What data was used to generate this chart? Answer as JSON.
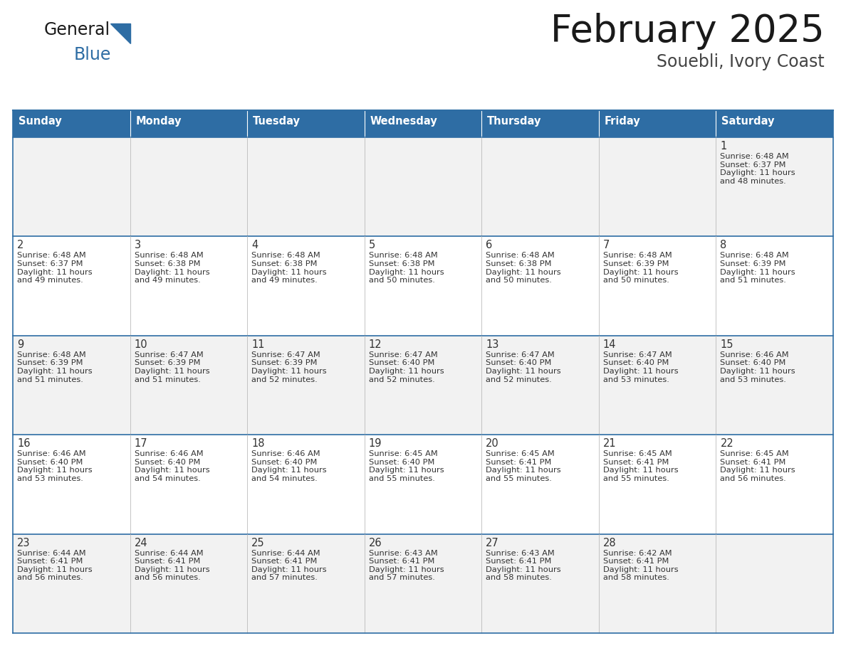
{
  "title": "February 2025",
  "subtitle": "Souebli, Ivory Coast",
  "header_color": "#2E6DA4",
  "header_text_color": "#FFFFFF",
  "cell_bg_white": "#FFFFFF",
  "cell_bg_gray": "#F2F2F2",
  "border_color": "#2E6DA4",
  "text_color": "#333333",
  "days_of_week": [
    "Sunday",
    "Monday",
    "Tuesday",
    "Wednesday",
    "Thursday",
    "Friday",
    "Saturday"
  ],
  "weeks": [
    [
      {
        "day": "",
        "info": ""
      },
      {
        "day": "",
        "info": ""
      },
      {
        "day": "",
        "info": ""
      },
      {
        "day": "",
        "info": ""
      },
      {
        "day": "",
        "info": ""
      },
      {
        "day": "",
        "info": ""
      },
      {
        "day": "1",
        "info": "Sunrise: 6:48 AM\nSunset: 6:37 PM\nDaylight: 11 hours\nand 48 minutes."
      }
    ],
    [
      {
        "day": "2",
        "info": "Sunrise: 6:48 AM\nSunset: 6:37 PM\nDaylight: 11 hours\nand 49 minutes."
      },
      {
        "day": "3",
        "info": "Sunrise: 6:48 AM\nSunset: 6:38 PM\nDaylight: 11 hours\nand 49 minutes."
      },
      {
        "day": "4",
        "info": "Sunrise: 6:48 AM\nSunset: 6:38 PM\nDaylight: 11 hours\nand 49 minutes."
      },
      {
        "day": "5",
        "info": "Sunrise: 6:48 AM\nSunset: 6:38 PM\nDaylight: 11 hours\nand 50 minutes."
      },
      {
        "day": "6",
        "info": "Sunrise: 6:48 AM\nSunset: 6:38 PM\nDaylight: 11 hours\nand 50 minutes."
      },
      {
        "day": "7",
        "info": "Sunrise: 6:48 AM\nSunset: 6:39 PM\nDaylight: 11 hours\nand 50 minutes."
      },
      {
        "day": "8",
        "info": "Sunrise: 6:48 AM\nSunset: 6:39 PM\nDaylight: 11 hours\nand 51 minutes."
      }
    ],
    [
      {
        "day": "9",
        "info": "Sunrise: 6:48 AM\nSunset: 6:39 PM\nDaylight: 11 hours\nand 51 minutes."
      },
      {
        "day": "10",
        "info": "Sunrise: 6:47 AM\nSunset: 6:39 PM\nDaylight: 11 hours\nand 51 minutes."
      },
      {
        "day": "11",
        "info": "Sunrise: 6:47 AM\nSunset: 6:39 PM\nDaylight: 11 hours\nand 52 minutes."
      },
      {
        "day": "12",
        "info": "Sunrise: 6:47 AM\nSunset: 6:40 PM\nDaylight: 11 hours\nand 52 minutes."
      },
      {
        "day": "13",
        "info": "Sunrise: 6:47 AM\nSunset: 6:40 PM\nDaylight: 11 hours\nand 52 minutes."
      },
      {
        "day": "14",
        "info": "Sunrise: 6:47 AM\nSunset: 6:40 PM\nDaylight: 11 hours\nand 53 minutes."
      },
      {
        "day": "15",
        "info": "Sunrise: 6:46 AM\nSunset: 6:40 PM\nDaylight: 11 hours\nand 53 minutes."
      }
    ],
    [
      {
        "day": "16",
        "info": "Sunrise: 6:46 AM\nSunset: 6:40 PM\nDaylight: 11 hours\nand 53 minutes."
      },
      {
        "day": "17",
        "info": "Sunrise: 6:46 AM\nSunset: 6:40 PM\nDaylight: 11 hours\nand 54 minutes."
      },
      {
        "day": "18",
        "info": "Sunrise: 6:46 AM\nSunset: 6:40 PM\nDaylight: 11 hours\nand 54 minutes."
      },
      {
        "day": "19",
        "info": "Sunrise: 6:45 AM\nSunset: 6:40 PM\nDaylight: 11 hours\nand 55 minutes."
      },
      {
        "day": "20",
        "info": "Sunrise: 6:45 AM\nSunset: 6:41 PM\nDaylight: 11 hours\nand 55 minutes."
      },
      {
        "day": "21",
        "info": "Sunrise: 6:45 AM\nSunset: 6:41 PM\nDaylight: 11 hours\nand 55 minutes."
      },
      {
        "day": "22",
        "info": "Sunrise: 6:45 AM\nSunset: 6:41 PM\nDaylight: 11 hours\nand 56 minutes."
      }
    ],
    [
      {
        "day": "23",
        "info": "Sunrise: 6:44 AM\nSunset: 6:41 PM\nDaylight: 11 hours\nand 56 minutes."
      },
      {
        "day": "24",
        "info": "Sunrise: 6:44 AM\nSunset: 6:41 PM\nDaylight: 11 hours\nand 56 minutes."
      },
      {
        "day": "25",
        "info": "Sunrise: 6:44 AM\nSunset: 6:41 PM\nDaylight: 11 hours\nand 57 minutes."
      },
      {
        "day": "26",
        "info": "Sunrise: 6:43 AM\nSunset: 6:41 PM\nDaylight: 11 hours\nand 57 minutes."
      },
      {
        "day": "27",
        "info": "Sunrise: 6:43 AM\nSunset: 6:41 PM\nDaylight: 11 hours\nand 58 minutes."
      },
      {
        "day": "28",
        "info": "Sunrise: 6:42 AM\nSunset: 6:41 PM\nDaylight: 11 hours\nand 58 minutes."
      },
      {
        "day": "",
        "info": ""
      }
    ]
  ]
}
